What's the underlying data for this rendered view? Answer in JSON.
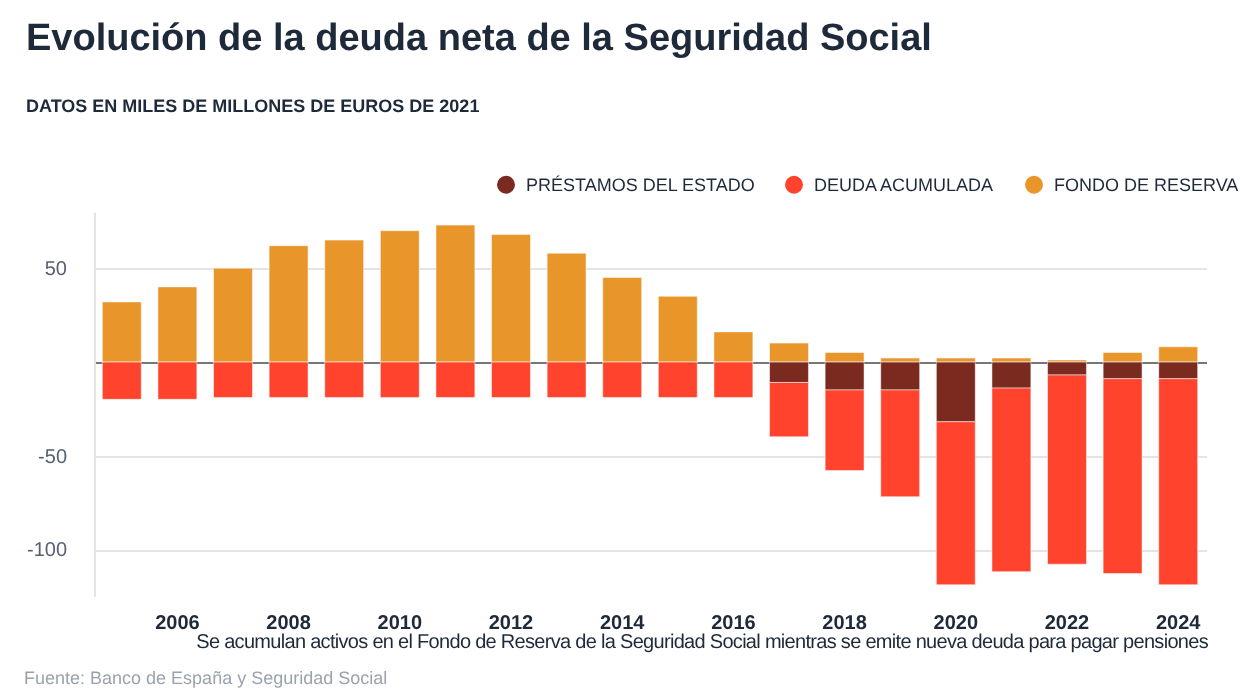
{
  "chart_data": {
    "type": "bar",
    "title": "Evolución de la deuda neta de la Seguridad Social",
    "subtitle": "DATOS EN MILES DE MILLONES DE EUROS DE 2021",
    "categories": [
      null,
      "2006",
      null,
      "2008",
      null,
      "2010",
      null,
      "2012",
      null,
      "2014",
      null,
      "2016",
      null,
      "2018",
      null,
      "2020",
      null,
      "2022",
      null,
      "2024"
    ],
    "stacked": true,
    "series": [
      {
        "name": "PRÉSTAMOS DEL ESTADO",
        "color": "#7b2a20",
        "values": [
          null,
          null,
          null,
          null,
          null,
          null,
          null,
          null,
          null,
          null,
          null,
          null,
          -11,
          -15,
          -15,
          -32,
          -14,
          -7,
          -9,
          -9
        ]
      },
      {
        "name": "DEUDA ACUMULADA",
        "color": "#ff432c",
        "values": [
          -20,
          -20,
          -19,
          -19,
          -19,
          -19,
          -19,
          -19,
          -19,
          -19,
          -19,
          -19,
          -29,
          -43,
          -57,
          -87,
          -98,
          -101,
          -104,
          -110
        ]
      },
      {
        "name": "FONDO DE RESERVA",
        "color": "#e8952a",
        "values": [
          32,
          40,
          50,
          62,
          65,
          70,
          73,
          68,
          58,
          45,
          35,
          16,
          10,
          5,
          2,
          2,
          2,
          1,
          5,
          8
        ]
      }
    ],
    "ylim": [
      -125,
      80
    ],
    "yticks": [
      -100,
      -50,
      {
        "value": 0,
        "label": null
      },
      50
    ],
    "grid": "y",
    "legend": "top right",
    "annotations": [
      "Se acumulan activos en el Fondo de Reserva de la Seguridad Social mientras se emite nueva deuda para pagar pensiones",
      "Fuente: Banco de España y Seguridad Social"
    ]
  }
}
